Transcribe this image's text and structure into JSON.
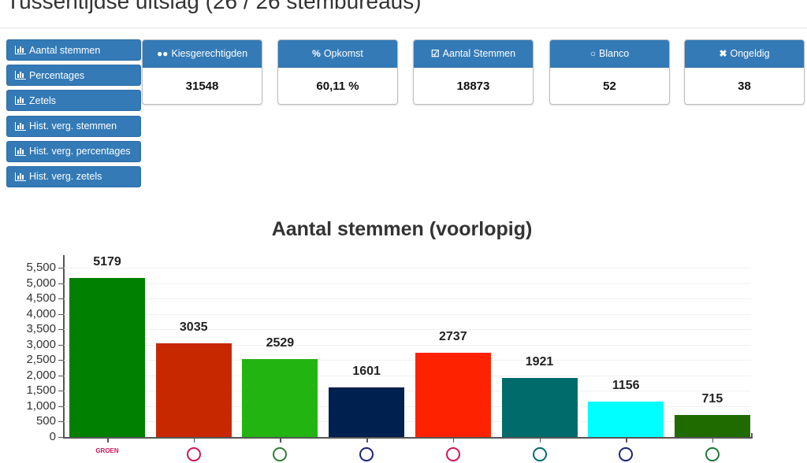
{
  "header": {
    "title": "Tussentijdse uitslag (26 / 26 stembureaus)"
  },
  "nav": {
    "items": [
      {
        "label": "Aantal stemmen",
        "icon": "bar-chart-icon"
      },
      {
        "label": "Percentages",
        "icon": "bar-chart-icon"
      },
      {
        "label": "Zetels",
        "icon": "bar-chart-icon"
      },
      {
        "label": "Hist. verg. stemmen",
        "icon": "bar-chart-icon"
      },
      {
        "label": "Hist. verg. percentages",
        "icon": "bar-chart-icon"
      },
      {
        "label": "Hist. verg. zetels",
        "icon": "bar-chart-icon"
      }
    ]
  },
  "stats": [
    {
      "label": "Kiesgerechtigden",
      "icon": "users-icon",
      "glyph": "●●",
      "value": "31548"
    },
    {
      "label": "Opkomst",
      "icon": "percent-icon",
      "glyph": "%",
      "value": "60,11 %"
    },
    {
      "label": "Aantal Stemmen",
      "icon": "check-square-icon",
      "glyph": "☑",
      "value": "18873"
    },
    {
      "label": "Blanco",
      "icon": "circle-icon",
      "glyph": "○",
      "value": "52"
    },
    {
      "label": "Ongeldig",
      "icon": "x-icon",
      "glyph": "✖",
      "value": "38"
    }
  ],
  "colors": {
    "primary": "#337ab7",
    "primary_border": "#2e6da4"
  },
  "chart_data": {
    "type": "bar",
    "title": "Aantal stemmen (voorlopig)",
    "xlabel": "",
    "ylabel": "",
    "ylim": [
      0,
      5750
    ],
    "grid": true,
    "legend": "none",
    "y_ticks": [
      "0",
      "500",
      "1,000",
      "1,500",
      "2,000",
      "2,500",
      "3,000",
      "3,500",
      "4,000",
      "4,500",
      "5,000",
      "5,500"
    ],
    "categories": [
      "GROEN (party 1)",
      "party 2 (red emblem)",
      "party 3 (striped logo)",
      "party 4 (blue logo)",
      "party 5 (red text logo)",
      "party 6 (teal round logo)",
      "party 7 (blue text logo)",
      "party 8 (green round logo)"
    ],
    "values": [
      5179,
      3035,
      2529,
      1601,
      2737,
      1921,
      1156,
      715
    ],
    "bar_colors": [
      "#008000",
      "#c82800",
      "#22b511",
      "#00204f",
      "#ff2200",
      "#006b6b",
      "#00ffff",
      "#1f6b00"
    ],
    "data_labels": [
      "5179",
      "3035",
      "2529",
      "1601",
      "2737",
      "1921",
      "1156",
      "715"
    ],
    "logo_text": [
      "GROEN",
      "",
      "",
      "",
      "",
      "",
      "",
      ""
    ],
    "logo_colors": [
      "#d4145a",
      "#d4145a",
      "#2e7d32",
      "#1a237e",
      "#d4145a",
      "#006b6b",
      "#1a237e",
      "#1b7a3a"
    ]
  }
}
